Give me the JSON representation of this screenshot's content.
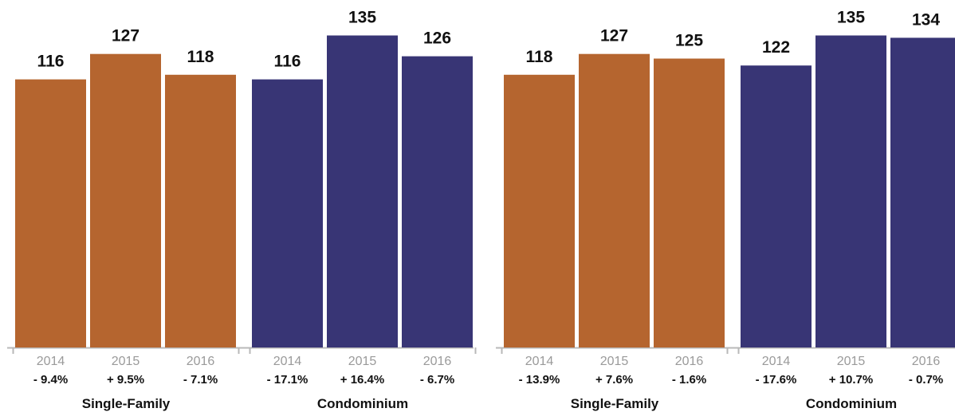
{
  "chart_data": [
    {
      "type": "bar",
      "ylim": [
        0,
        140
      ],
      "groups": [
        {
          "label": "Single-Family",
          "color": "#b5652f",
          "categories": [
            "2014",
            "2015",
            "2016"
          ],
          "values": [
            116,
            127,
            118
          ],
          "changes": [
            "- 9.4%",
            "+ 9.5%",
            "- 7.1%"
          ]
        },
        {
          "label": "Condominium",
          "color": "#383575",
          "categories": [
            "2014",
            "2015",
            "2016"
          ],
          "values": [
            116,
            135,
            126
          ],
          "changes": [
            "- 17.1%",
            "+ 16.4%",
            "- 6.7%"
          ]
        }
      ]
    },
    {
      "type": "bar",
      "ylim": [
        0,
        140
      ],
      "groups": [
        {
          "label": "Single-Family",
          "color": "#b5652f",
          "categories": [
            "2014",
            "2015",
            "2016"
          ],
          "values": [
            118,
            127,
            125
          ],
          "changes": [
            "- 13.9%",
            "+ 7.6%",
            "- 1.6%"
          ]
        },
        {
          "label": "Condominium",
          "color": "#383575",
          "categories": [
            "2014",
            "2015",
            "2016"
          ],
          "values": [
            122,
            135,
            134
          ],
          "changes": [
            "- 17.6%",
            "+ 10.7%",
            "- 0.7%"
          ]
        }
      ]
    }
  ]
}
